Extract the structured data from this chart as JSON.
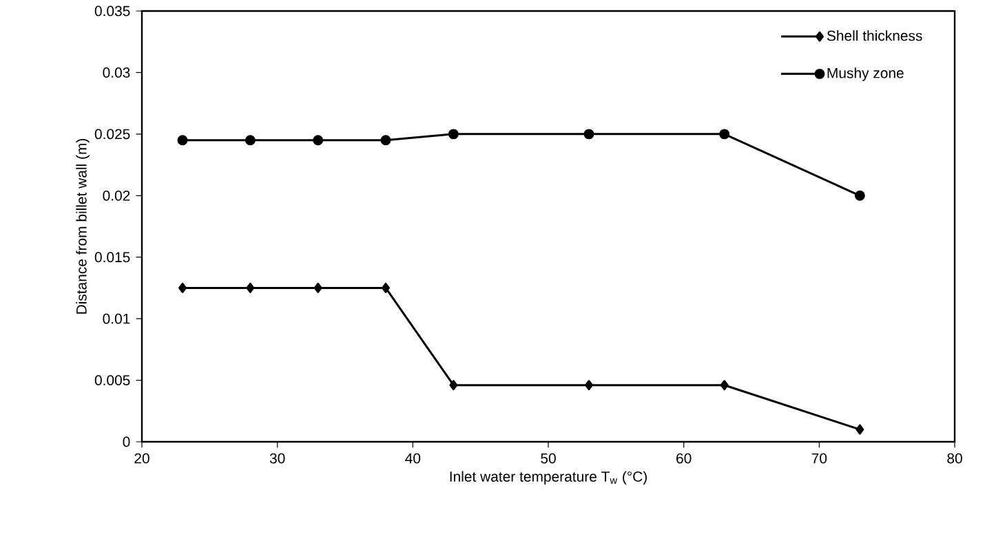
{
  "chart_data": {
    "type": "line",
    "xlabel": "Inlet water temperature T$_{w}$ (°C)",
    "ylabel": "Distance from billet wall (m)",
    "x": [
      23,
      28,
      33,
      38,
      43,
      53,
      63,
      73
    ],
    "series": [
      {
        "name": "Shell thickness",
        "color": "#000000",
        "marker": "diamond",
        "values": [
          0.0125,
          0.0125,
          0.0125,
          0.0125,
          0.0046,
          0.0046,
          0.0046,
          0.001
        ]
      },
      {
        "name": "Mushy zone",
        "color": "#000000",
        "marker": "circle",
        "values": [
          0.0245,
          0.0245,
          0.0245,
          0.0245,
          0.025,
          0.025,
          0.025,
          0.02
        ]
      }
    ],
    "xlim": [
      20,
      80
    ],
    "xticks": [
      20,
      30,
      40,
      50,
      60,
      70,
      80
    ],
    "ylim": [
      0,
      0.035
    ],
    "yticks": [
      0,
      0.005,
      0.01,
      0.015,
      0.02,
      0.025,
      0.03,
      0.035
    ],
    "legend": "top right",
    "line_style": "solid"
  }
}
